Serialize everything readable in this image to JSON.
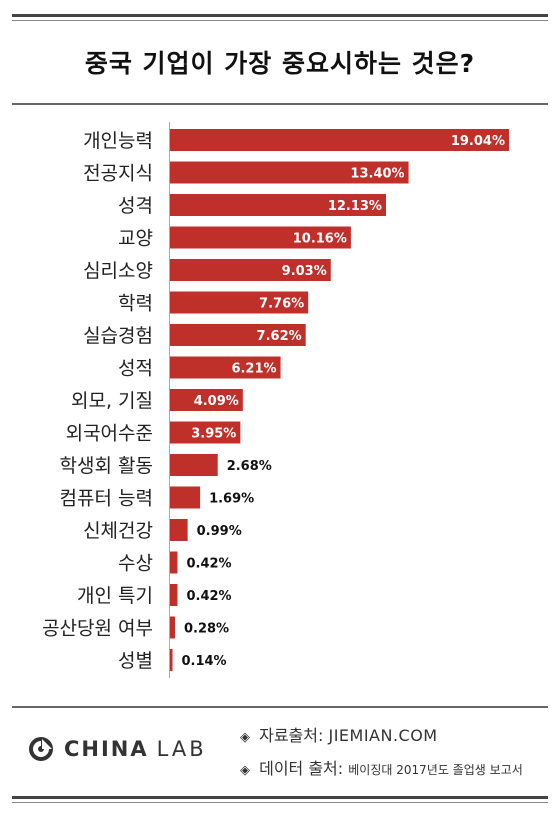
{
  "title": "중국 기업이 가장 중요시하는 것은?",
  "chart_data": {
    "type": "bar",
    "orientation": "horizontal",
    "title": "중국 기업이 가장 중요시하는 것은?",
    "unit": "%",
    "bar_color": "#c0302b",
    "categories": [
      "개인능력",
      "전공지식",
      "성격",
      "교양",
      "심리소양",
      "학력",
      "실습경험",
      "성적",
      "외모, 기질",
      "외국어수준",
      "학생회 활동",
      "컴퓨터 능력",
      "신체건강",
      "수상",
      "개인 특기",
      "공산당원 여부",
      "성별"
    ],
    "values": [
      19.04,
      13.4,
      12.13,
      10.16,
      9.03,
      7.76,
      7.62,
      6.21,
      4.09,
      3.95,
      2.68,
      1.69,
      0.99,
      0.42,
      0.42,
      0.28,
      0.14
    ],
    "value_labels": [
      "19.04%",
      "13.40%",
      "12.13%",
      "10.16%",
      "9.03%",
      "7.76%",
      "7.62%",
      "6.21%",
      "4.09%",
      "3.95%",
      "2.68%",
      "1.69%",
      "0.99%",
      "0.42%",
      "0.42%",
      "0.28%",
      "0.14%"
    ],
    "xlim": [
      0,
      19.04
    ],
    "grid": false,
    "legend": "none"
  },
  "footer": {
    "logo_text_bold": "CHINA",
    "logo_text_light": "LAB",
    "source_label": "자료출처:",
    "source_value": "JIEMIAN.COM",
    "data_label": "데이터 출처:",
    "data_value": "베이징대 2017년도 졸업생 보고서",
    "bullet": "◈"
  }
}
